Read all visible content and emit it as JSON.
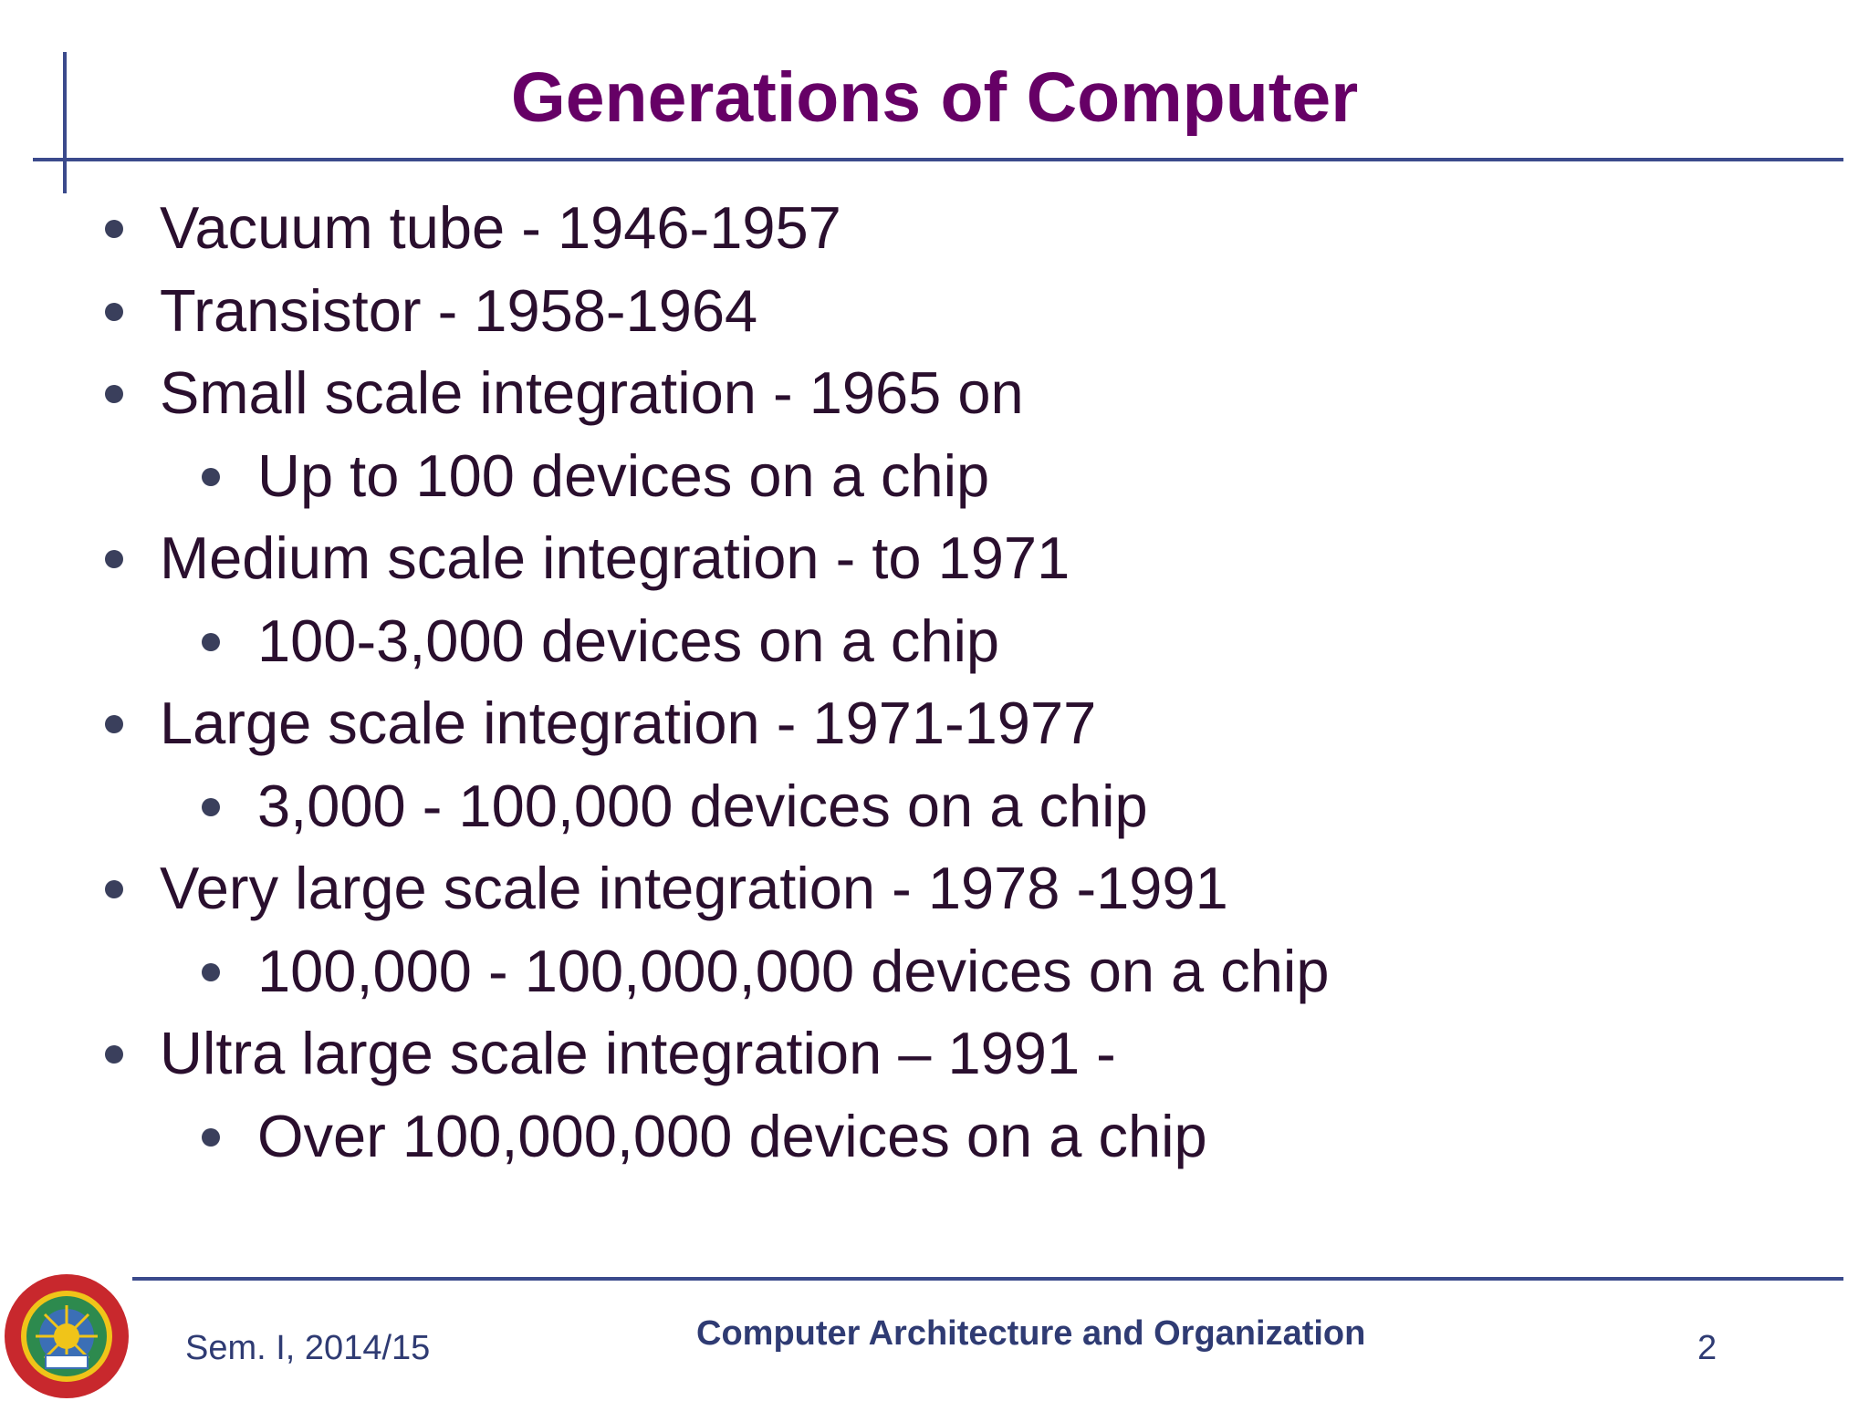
{
  "title": "Generations of Computer",
  "bullets": [
    {
      "level": 1,
      "text": "Vacuum tube - 1946-1957"
    },
    {
      "level": 1,
      "text": "Transistor - 1958-1964"
    },
    {
      "level": 1,
      "text": "Small scale integration - 1965 on"
    },
    {
      "level": 2,
      "text": "Up to 100 devices on a chip"
    },
    {
      "level": 1,
      "text": "Medium scale integration - to 1971"
    },
    {
      "level": 2,
      "text": "100-3,000 devices on a chip"
    },
    {
      "level": 1,
      "text": "Large scale integration - 1971-1977"
    },
    {
      "level": 2,
      "text": "3,000 - 100,000 devices on a chip"
    },
    {
      "level": 1,
      "text": "Very large scale integration - 1978 -1991"
    },
    {
      "level": 2,
      "text": "100,000 - 100,000,000 devices on a chip"
    },
    {
      "level": 1,
      "text": "Ultra large scale integration – 1991 -"
    },
    {
      "level": 2,
      "text": "Over 100,000,000 devices on a chip"
    }
  ],
  "footer": {
    "left": "Sem. I, 2014/15",
    "center": "Computer Architecture and Organization",
    "page_number": "2"
  },
  "logo": {
    "icon": "university-seal-icon",
    "colors": {
      "outer_ring": "#c8282d",
      "inner_ring": "#f0c419",
      "center": "#2d8a4e",
      "accent": "#3b6fb6"
    }
  },
  "colors": {
    "title": "#660066",
    "body_text": "#2a0f2e",
    "rule": "#3b4a8c",
    "footer_text": "#2f3b73"
  }
}
